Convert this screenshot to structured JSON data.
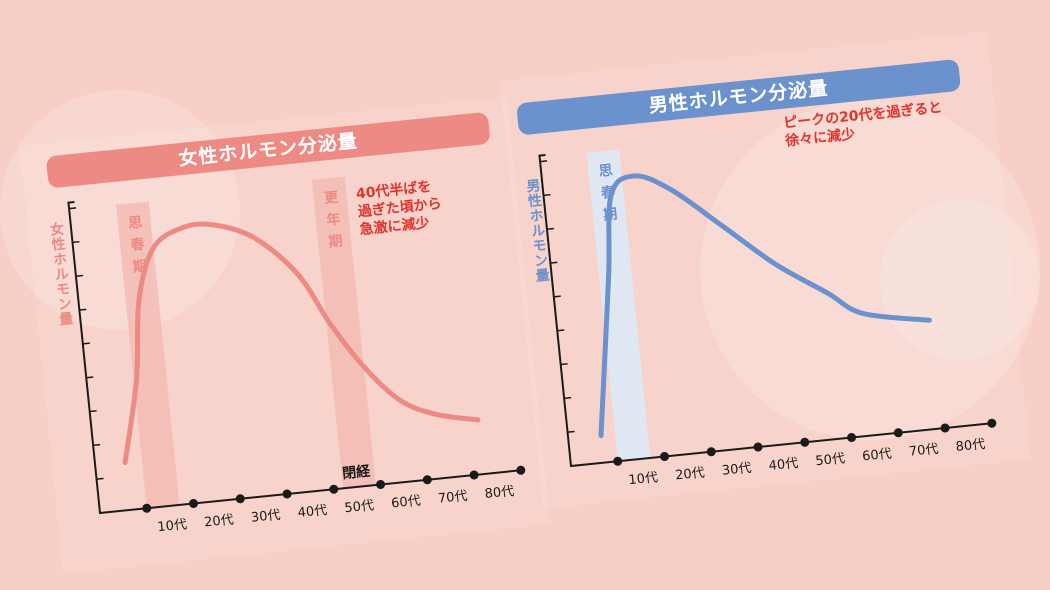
{
  "colors": {
    "background": "#f7cfc6",
    "female": "#ee8a84",
    "male": "#6b92cc",
    "annotation": "#e0352b",
    "female_band": "#f2b8b0",
    "male_band": "#dfe7f3",
    "axis": "#1a1a1a"
  },
  "chart_data": [
    {
      "type": "line",
      "title": "女性ホルモン分泌量",
      "ylabel": "女性ホルモン量",
      "xlabel": "",
      "x_tick_labels": [
        "10代",
        "20代",
        "30代",
        "40代",
        "50代",
        "60代",
        "70代",
        "80代"
      ],
      "x_unit": "age (years)",
      "xlim": [
        0,
        80
      ],
      "y_ticks": 9,
      "y_tick_labels_shown": false,
      "series": [
        {
          "points": [
            [
              -3.6,
              1.4
            ],
            [
              0.6,
              3.8
            ],
            [
              2.8,
              6.1
            ],
            [
              7,
              7.6
            ],
            [
              13.5,
              8.1
            ],
            [
              20,
              8.1
            ],
            [
              28.5,
              7.6
            ],
            [
              37,
              6.4
            ],
            [
              43,
              4.8
            ],
            [
              49.5,
              3.4
            ],
            [
              56,
              2.4
            ],
            [
              63,
              1.9
            ],
            [
              72,
              1.6
            ]
          ]
        }
      ],
      "bands": [
        {
          "label": "思春期",
          "range": [
            0,
            7
          ]
        },
        {
          "label": "更年期",
          "range": [
            42,
            49
          ]
        }
      ],
      "annotations": {
        "note": "40代半ばを\n過ぎた頃から\n急激に減少",
        "menopause": "閉経"
      },
      "color": "#ee8a84"
    },
    {
      "type": "line",
      "title": "男性ホルモン分泌量",
      "ylabel": "男性ホルモン量",
      "xlabel": "",
      "x_tick_labels": [
        "10代",
        "20代",
        "30代",
        "40代",
        "50代",
        "60代",
        "70代",
        "80代"
      ],
      "x_unit": "age (years)",
      "xlim": [
        0,
        80
      ],
      "y_ticks": 9,
      "y_tick_labels_shown": false,
      "series": [
        {
          "points": [
            [
              -3,
              0.8
            ],
            [
              2,
              5.4
            ],
            [
              4.3,
              7.8
            ],
            [
              9.6,
              8.3
            ],
            [
              17,
              7.8
            ],
            [
              27,
              6.6
            ],
            [
              37.6,
              5.3
            ],
            [
              48,
              4.3
            ],
            [
              55,
              3.6
            ],
            [
              69,
              3.2
            ]
          ]
        }
      ],
      "bands": [
        {
          "label": "思春期",
          "range": [
            0,
            7
          ]
        }
      ],
      "annotations": {
        "note": "ピークの20代を過ぎると\n徐々に減少"
      },
      "color": "#6b92cc"
    }
  ]
}
